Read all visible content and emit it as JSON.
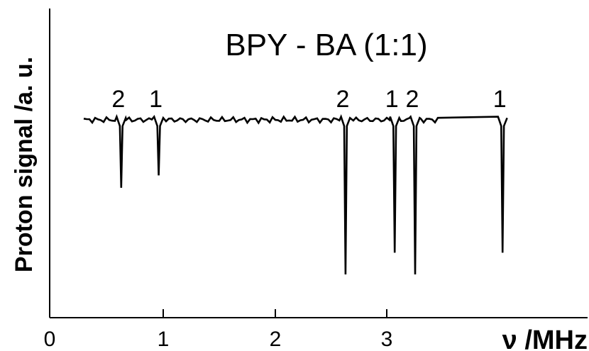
{
  "chart_data": {
    "type": "line",
    "title": "BPY - BA (1:1)",
    "xlabel": "ν /MHz",
    "ylabel": "Proton signal /a. u.",
    "xlim": [
      0,
      3.3
    ],
    "ylim": [
      0,
      1
    ],
    "xticks": [
      0,
      1,
      2,
      3
    ],
    "yticks": [],
    "grid": false,
    "legend": "none",
    "baseline": 0.64,
    "noise_amplitude": 0.01,
    "x_start": 0.3,
    "x_end": 3.45,
    "peaks": [
      {
        "label": "2",
        "x": 0.63,
        "depth": 0.22
      },
      {
        "label": "1",
        "x": 0.96,
        "depth": 0.18
      },
      {
        "label": "2",
        "x": 2.63,
        "depth": 0.5
      },
      {
        "label": "1",
        "x": 3.07,
        "depth": 0.43
      },
      {
        "label": "2",
        "x": 3.25,
        "depth": 0.5
      },
      {
        "label": "1",
        "x": 4.02,
        "depth": 0.43
      }
    ]
  }
}
